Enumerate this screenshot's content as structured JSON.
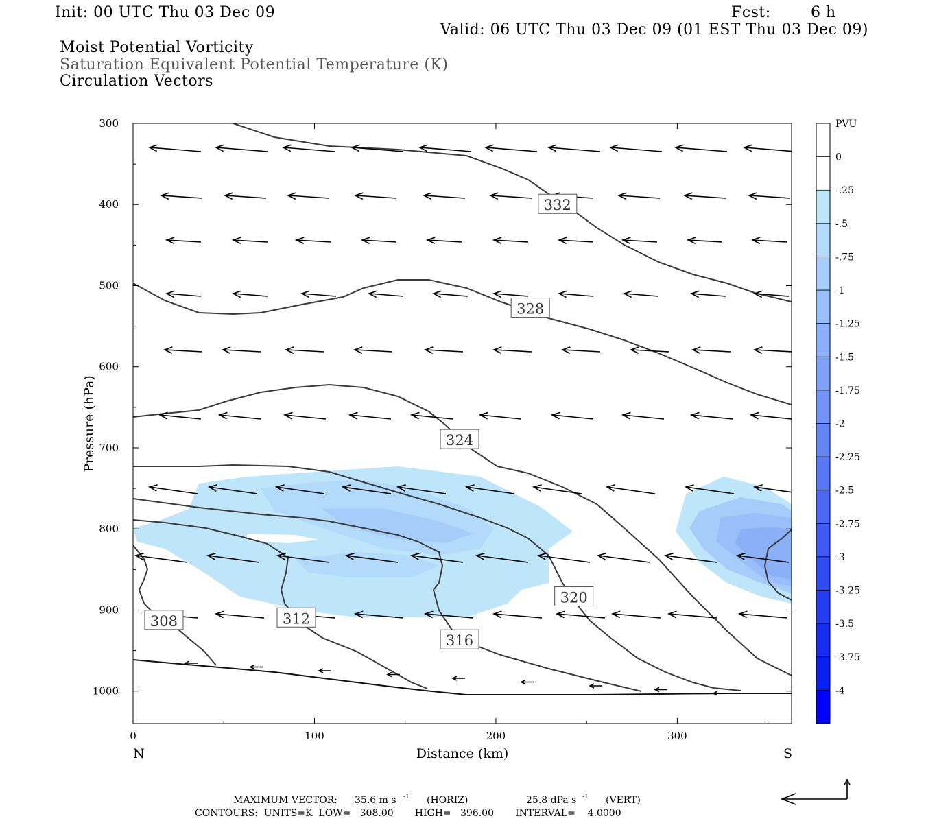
{
  "header": {
    "init": "Init: 00 UTC Thu 03 Dec 09",
    "fcst_label": "Fcst:",
    "fcst_value": "6 h",
    "valid": "Valid: 06 UTC Thu 03 Dec 09 (01 EST Thu 03 Dec 09)",
    "fields": [
      "Moist Potential Vorticity",
      "Saturation Equivalent Potential Temperature (K)",
      "Circulation Vectors"
    ]
  },
  "colors": {
    "field_line_1": "#000000",
    "field_line_2": "#555555",
    "field_line_3": "#000000",
    "contour": "#3a3a3a",
    "vector": "#000000",
    "frame": "#000000"
  },
  "chart_data": {
    "type": "cross-section",
    "xlabel": "Distance (km)",
    "ylabel": "Pressure (hPa)",
    "xlim": [
      0,
      363
    ],
    "ylim": [
      1040,
      300
    ],
    "x_ticks": [
      0,
      100,
      200,
      300
    ],
    "x_tick_labels": [
      "0",
      "100",
      "200",
      "300"
    ],
    "y_ticks": [
      300,
      400,
      500,
      600,
      700,
      800,
      900,
      1000
    ],
    "y_tick_labels": [
      "300",
      "400",
      "500",
      "600",
      "700",
      "800",
      "900",
      "1000"
    ],
    "left_end_label": "N",
    "right_end_label": "S",
    "colorbar": {
      "unit": "PVU",
      "levels": [
        "0",
        "-.25",
        "-.5",
        "-.75",
        "-1",
        "-1.25",
        "-1.5",
        "-1.75",
        "-2",
        "-2.25",
        "-2.5",
        "-2.75",
        "-3",
        "-3.25",
        "-3.5",
        "-3.75",
        "-4"
      ],
      "colors": [
        "#ffffff",
        "#ffffff",
        "#bfe5fb",
        "#b3d9fb",
        "#a6ccfa",
        "#99bef9",
        "#8cb0f8",
        "#7fa2f7",
        "#7394f6",
        "#6685f5",
        "#5977f4",
        "#4c68f3",
        "#3f59f2",
        "#324bf1",
        "#253cf0",
        "#182df0",
        "#0b1fef",
        "#0000ff"
      ]
    },
    "contour_labels": [
      {
        "value": "308",
        "x": 17,
        "p": 913
      },
      {
        "value": "312",
        "x": 90,
        "p": 910
      },
      {
        "value": "316",
        "x": 180,
        "p": 937
      },
      {
        "value": "320",
        "x": 243,
        "p": 884
      },
      {
        "value": "324",
        "x": 180,
        "p": 690
      },
      {
        "value": "328",
        "x": 219,
        "p": 528
      },
      {
        "value": "332",
        "x": 234,
        "p": 400
      }
    ],
    "footer": {
      "max_vector_label": "MAXIMUM VECTOR:",
      "horiz_value": "35.6 m s",
      "horiz_unit": "(HORIZ)",
      "vert_value": "25.8 dPa s",
      "vert_unit": "(VERT)",
      "exponent": "-1",
      "contours": "CONTOURS:  UNITS=K  LOW=   308.00       HIGH=   396.00       INTERVAL=    4.0000"
    }
  }
}
